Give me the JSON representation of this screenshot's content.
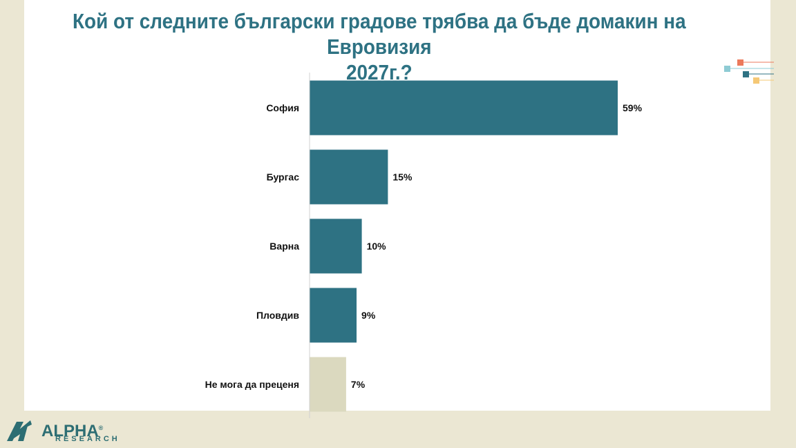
{
  "title_lines": [
    "Кой от следните български градове трябва да бъде домакин на Евровизия",
    "2027г.?"
  ],
  "chart_data": {
    "type": "bar",
    "orientation": "horizontal",
    "title": "Кой от следните български градове трябва да бъде домакин на Евровизия 2027г.?",
    "categories": [
      "София",
      "Бургас",
      "Варна",
      "Пловдив",
      "Не мога да преценя"
    ],
    "values": [
      59,
      15,
      10,
      9,
      7
    ],
    "value_labels": [
      "59%",
      "15%",
      "10%",
      "9%",
      "7%"
    ],
    "unit": "%",
    "xlim": [
      0,
      70
    ],
    "grid": false,
    "legend": "none",
    "colors": [
      "#2e7283",
      "#2e7283",
      "#2e7283",
      "#2e7283",
      "#dbd9bf"
    ]
  },
  "logo": {
    "main": "ALPHA",
    "sub": "RESEARCH",
    "trademark": "®",
    "color": "#2d6e73"
  },
  "decoration": {
    "colors": [
      "#ec7a5c",
      "#8ecbd4",
      "#2e7283",
      "#f5c876"
    ]
  }
}
